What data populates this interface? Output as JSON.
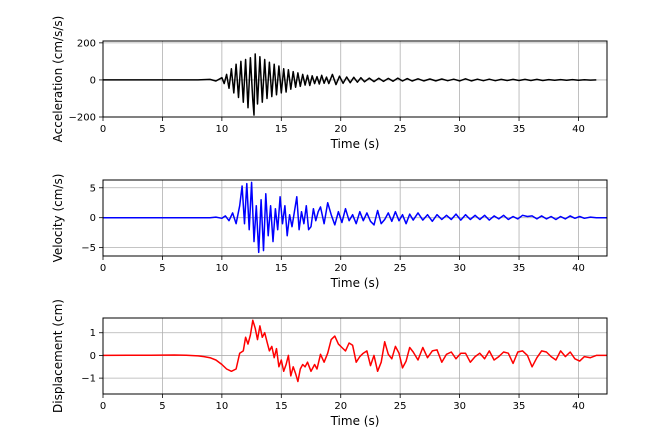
{
  "chart_data": [
    {
      "type": "line",
      "xlabel": "Time (s)",
      "ylabel": "Acceleration (cm/s/s)",
      "xlim": [
        0,
        42.4
      ],
      "ylim": [
        -200,
        210
      ],
      "xticks": [
        0,
        5,
        10,
        15,
        20,
        25,
        30,
        35,
        40
      ],
      "yticks": [
        -200,
        0,
        200
      ],
      "xtick_labels": [
        "0",
        "5",
        "10",
        "15",
        "20",
        "25",
        "30",
        "35",
        "40"
      ],
      "ytick_labels": [
        "−200",
        "0",
        "200"
      ],
      "grid": true,
      "series": [
        {
          "color": "#000000",
          "x": [
            0,
            8,
            9,
            9.5,
            10,
            10.2,
            10.4,
            10.6,
            10.8,
            11,
            11.2,
            11.4,
            11.6,
            11.8,
            12,
            12.2,
            12.4,
            12.6,
            12.7,
            12.8,
            13,
            13.2,
            13.4,
            13.6,
            13.8,
            14,
            14.2,
            14.4,
            14.6,
            14.8,
            15,
            15.2,
            15.4,
            15.6,
            15.8,
            16,
            16.2,
            16.4,
            16.6,
            16.8,
            17,
            17.2,
            17.4,
            17.6,
            17.8,
            18,
            18.2,
            18.4,
            18.6,
            18.8,
            19,
            19.3,
            19.6,
            19.9,
            20.2,
            20.5,
            20.8,
            21.1,
            21.4,
            21.7,
            22,
            22.4,
            22.8,
            23.2,
            23.6,
            24,
            24.4,
            24.8,
            25.2,
            25.6,
            26,
            26.5,
            27,
            27.5,
            28,
            28.5,
            29,
            29.5,
            30,
            30.5,
            31,
            31.5,
            32,
            32.5,
            33,
            33.5,
            34,
            34.5,
            35,
            35.5,
            36,
            36.5,
            37,
            37.5,
            38,
            38.5,
            39,
            39.5,
            40,
            40.5,
            41,
            41.5
          ],
          "values": [
            0,
            0,
            3,
            -6,
            12,
            -20,
            30,
            -45,
            60,
            -70,
            85,
            -95,
            100,
            -120,
            110,
            -150,
            120,
            -110,
            -190,
            140,
            -130,
            125,
            -120,
            110,
            -100,
            95,
            -90,
            85,
            -80,
            75,
            -70,
            60,
            -65,
            55,
            -50,
            45,
            -40,
            38,
            -35,
            30,
            -28,
            25,
            -30,
            22,
            -20,
            18,
            -22,
            25,
            -18,
            15,
            -20,
            30,
            -25,
            20,
            -18,
            16,
            -15,
            14,
            -12,
            12,
            -10,
            10,
            -9,
            9,
            -8,
            8,
            -7,
            10,
            -6,
            7,
            -6,
            6,
            -5,
            5,
            -5,
            5,
            -4,
            4,
            -5,
            6,
            -5,
            4,
            -4,
            4,
            -4,
            3,
            -3,
            3,
            -3,
            3,
            -3,
            3,
            -3,
            2,
            -2,
            2,
            -2,
            2,
            -2,
            1,
            -1,
            0
          ]
        }
      ]
    },
    {
      "type": "line",
      "xlabel": "Time (s)",
      "ylabel": "Velocity (cm/s)",
      "xlim": [
        0,
        42.4
      ],
      "ylim": [
        -6.4,
        6.3
      ],
      "xticks": [
        0,
        5,
        10,
        15,
        20,
        25,
        30,
        35,
        40
      ],
      "yticks": [
        -5,
        0,
        5
      ],
      "xtick_labels": [
        "0",
        "5",
        "10",
        "15",
        "20",
        "25",
        "30",
        "35",
        "40"
      ],
      "ytick_labels": [
        "−5",
        "0",
        "5"
      ],
      "grid": true,
      "series": [
        {
          "color": "#0000ff",
          "x": [
            0,
            9,
            9.5,
            10,
            10.3,
            10.6,
            10.9,
            11.2,
            11.5,
            11.7,
            11.9,
            12.1,
            12.3,
            12.5,
            12.7,
            12.9,
            13.1,
            13.3,
            13.5,
            13.7,
            13.9,
            14.1,
            14.3,
            14.5,
            14.7,
            14.9,
            15.1,
            15.3,
            15.5,
            15.7,
            15.9,
            16.1,
            16.3,
            16.5,
            16.7,
            16.9,
            17.1,
            17.3,
            17.5,
            17.7,
            17.9,
            18.1,
            18.3,
            18.6,
            18.9,
            19.2,
            19.5,
            19.8,
            20.1,
            20.4,
            20.7,
            21,
            21.3,
            21.6,
            21.9,
            22.2,
            22.5,
            22.8,
            23.1,
            23.4,
            23.7,
            24,
            24.3,
            24.6,
            24.9,
            25.2,
            25.5,
            25.8,
            26.1,
            26.5,
            26.9,
            27.3,
            27.7,
            28.1,
            28.5,
            28.9,
            29.3,
            29.7,
            30.1,
            30.5,
            30.9,
            31.3,
            31.7,
            32.1,
            32.5,
            32.9,
            33.3,
            33.7,
            34.1,
            34.5,
            34.9,
            35.3,
            35.7,
            36.1,
            36.5,
            36.9,
            37.3,
            37.7,
            38.1,
            38.5,
            38.9,
            39.3,
            39.7,
            40.1,
            40.5,
            41,
            41.5,
            42.4
          ],
          "values": [
            0,
            0,
            0.1,
            -0.1,
            0.3,
            -0.5,
            0.8,
            -1,
            2,
            5.3,
            -1,
            5.7,
            -2,
            5.9,
            -4,
            2,
            -5.8,
            3,
            -5.5,
            4,
            -3,
            2,
            -4,
            1.5,
            -2,
            3.5,
            -1,
            2,
            -3,
            0.5,
            -1.5,
            1,
            3.5,
            -2,
            1,
            -1,
            2,
            -2,
            -1.5,
            1.5,
            -0.5,
            1,
            1.8,
            -1,
            2.5,
            0.5,
            -1.2,
            1,
            -0.8,
            1.5,
            -0.5,
            0.5,
            -1,
            1,
            -0.5,
            0.8,
            -0.6,
            -1.2,
            1.2,
            -1,
            -0.3,
            0.8,
            -0.6,
            1,
            -0.5,
            0.5,
            -1,
            0.6,
            -0.4,
            0.8,
            -0.4,
            0.5,
            -0.6,
            0.5,
            -0.3,
            0.4,
            -0.3,
            0.6,
            -0.4,
            0.5,
            -0.3,
            0.4,
            -0.3,
            0.4,
            -0.4,
            0.3,
            -0.2,
            0.4,
            -0.3,
            0.2,
            -0.2,
            0.4,
            0.2,
            0.3,
            -0.2,
            0.3,
            -0.2,
            0.2,
            -0.3,
            0.2,
            -0.2,
            0.3,
            -0.1,
            0.2,
            -0.1,
            0.1,
            0,
            0
          ]
        }
      ]
    },
    {
      "type": "line",
      "xlabel": "Time (s)",
      "ylabel": "Displacement (cm)",
      "xlim": [
        0,
        42.4
      ],
      "ylim": [
        -1.7,
        1.65
      ],
      "xticks": [
        0,
        5,
        10,
        15,
        20,
        25,
        30,
        35,
        40
      ],
      "yticks": [
        -1,
        0,
        1
      ],
      "xtick_labels": [
        "0",
        "5",
        "10",
        "15",
        "20",
        "25",
        "30",
        "35",
        "40"
      ],
      "ytick_labels": [
        "−1",
        "0",
        "1"
      ],
      "grid": true,
      "series": [
        {
          "color": "#ff0000",
          "x": [
            0,
            4,
            6,
            7,
            8,
            8.5,
            9,
            9.5,
            10,
            10.4,
            10.8,
            11.2,
            11.5,
            11.8,
            12,
            12.2,
            12.4,
            12.6,
            12.8,
            13,
            13.2,
            13.4,
            13.6,
            13.8,
            14,
            14.2,
            14.4,
            14.6,
            14.8,
            15,
            15.2,
            15.4,
            15.6,
            15.8,
            16,
            16.2,
            16.4,
            16.6,
            16.8,
            17,
            17.2,
            17.5,
            17.8,
            18,
            18.3,
            18.6,
            18.9,
            19.2,
            19.5,
            19.8,
            20.1,
            20.4,
            20.7,
            21,
            21.3,
            21.6,
            21.9,
            22.2,
            22.5,
            22.8,
            23.1,
            23.4,
            23.7,
            24,
            24.3,
            24.6,
            24.9,
            25.2,
            25.5,
            25.8,
            26.1,
            26.5,
            26.9,
            27.3,
            27.7,
            28.1,
            28.5,
            28.9,
            29.3,
            29.7,
            30.1,
            30.5,
            30.9,
            31.3,
            31.7,
            32.1,
            32.5,
            32.9,
            33.3,
            33.7,
            34.1,
            34.5,
            34.9,
            35.3,
            35.7,
            36.1,
            36.5,
            36.9,
            37.3,
            37.7,
            38.1,
            38.5,
            38.9,
            39.3,
            39.7,
            40.1,
            40.5,
            41,
            41.5,
            42.4
          ],
          "values": [
            0,
            0.01,
            0.02,
            0.01,
            -0.02,
            -0.05,
            -0.1,
            -0.2,
            -0.4,
            -0.6,
            -0.7,
            -0.6,
            0.1,
            0.2,
            0.8,
            0.5,
            0.9,
            1.55,
            1.2,
            0.7,
            1.3,
            0.8,
            1.0,
            0.6,
            0.2,
            0.4,
            -0.1,
            0.3,
            -0.5,
            -0.2,
            -0.7,
            -0.4,
            0.0,
            -0.9,
            -0.5,
            -0.8,
            -1.15,
            -0.6,
            -0.4,
            -0.5,
            -0.3,
            -0.7,
            -0.4,
            -0.6,
            0.05,
            -0.3,
            0.1,
            0.7,
            0.85,
            0.5,
            0.35,
            0.2,
            0.55,
            0.45,
            -0.3,
            -0.05,
            0.1,
            0.2,
            -0.45,
            0.0,
            -0.7,
            -0.3,
            0.6,
            0.05,
            -0.15,
            0.4,
            0.1,
            -0.55,
            -0.25,
            0.35,
            0.15,
            -0.2,
            0.35,
            -0.1,
            0.2,
            0.25,
            -0.3,
            0.05,
            0.15,
            -0.15,
            0.1,
            0.1,
            -0.3,
            -0.05,
            0.1,
            -0.15,
            0.2,
            -0.2,
            -0.05,
            0.15,
            0.1,
            -0.35,
            0.15,
            0.2,
            0.0,
            -0.5,
            -0.1,
            0.2,
            0.15,
            -0.05,
            -0.2,
            0.2,
            -0.05,
            0.15,
            -0.15,
            -0.25,
            -0.05,
            -0.1,
            0.0,
            0.0
          ]
        }
      ]
    }
  ]
}
